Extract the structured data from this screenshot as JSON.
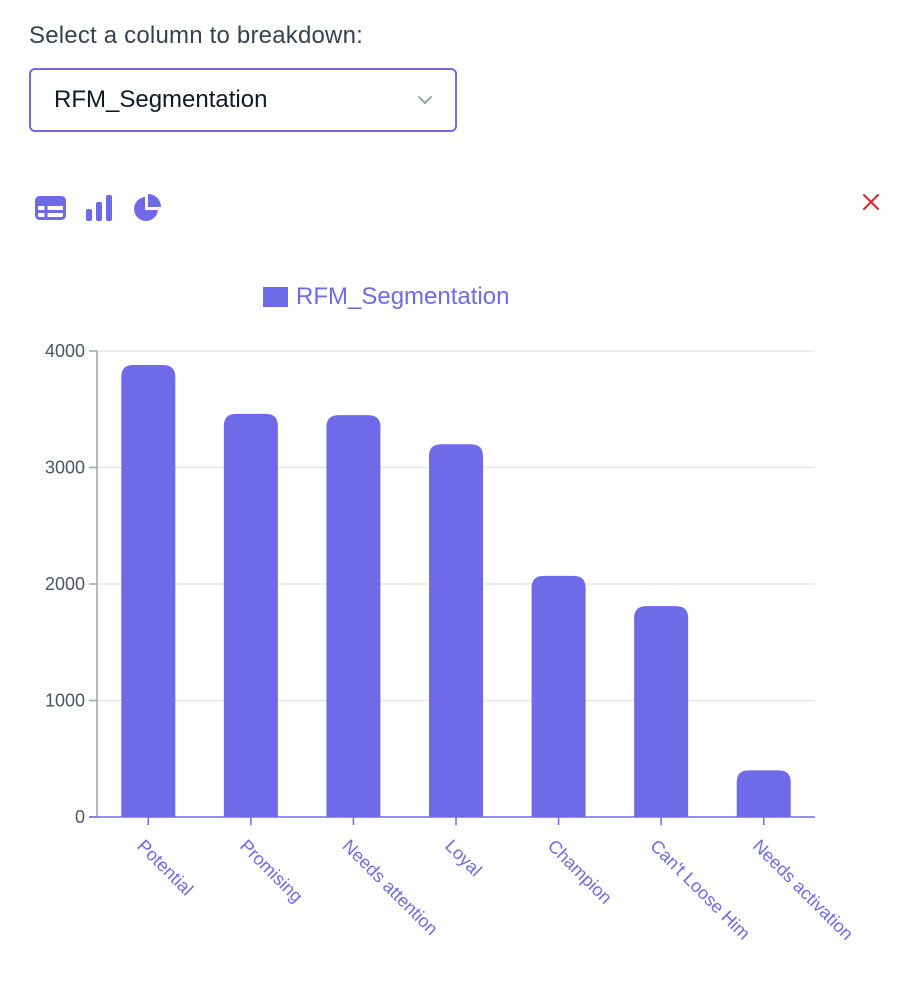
{
  "select": {
    "label": "Select a column to breakdown:",
    "value": "RFM_Segmentation"
  },
  "toolbar": {
    "icons": [
      "table-icon",
      "bar-chart-icon",
      "pie-chart-icon",
      "close-icon"
    ]
  },
  "colors": {
    "accent": "#6e6ae8",
    "close": "#dc2626",
    "grid": "#e5e7eb"
  },
  "chart_data": {
    "type": "bar",
    "legend": [
      "RFM_Segmentation"
    ],
    "categories": [
      "Potential",
      "Promising",
      "Needs attention",
      "Loyal",
      "Champion",
      "Can't Loose Him",
      "Needs activation"
    ],
    "series": [
      {
        "name": "RFM_Segmentation",
        "values": [
          3880,
          3460,
          3450,
          3200,
          2070,
          1810,
          400
        ]
      }
    ],
    "yticks": [
      0,
      1000,
      2000,
      3000,
      4000
    ],
    "ylim": [
      0,
      4000
    ],
    "grid": true,
    "legend_position": "top-center"
  }
}
